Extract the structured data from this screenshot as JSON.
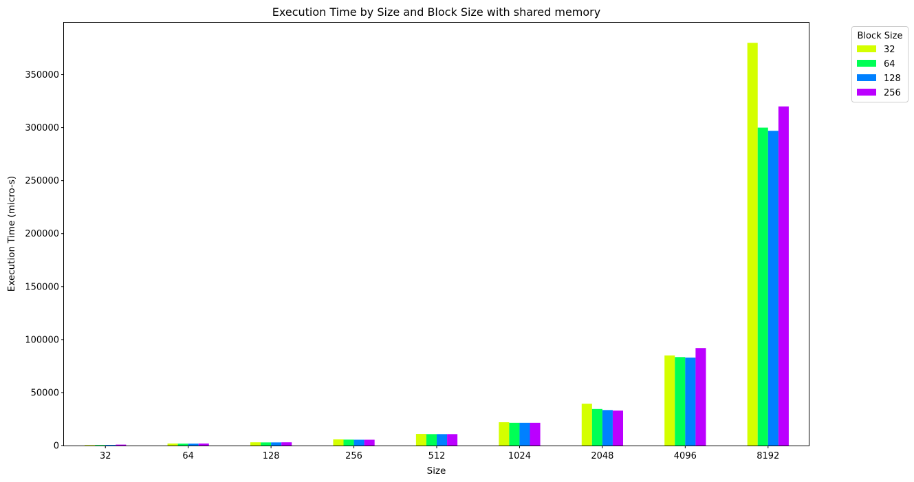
{
  "chart_data": {
    "type": "bar",
    "title": "Execution Time by Size and Block Size with shared memory",
    "xlabel": "Size",
    "ylabel": "Execution Time (micro-s)",
    "categories": [
      "32",
      "64",
      "128",
      "256",
      "512",
      "1024",
      "2048",
      "4096",
      "8192"
    ],
    "ylim": [
      0,
      399000
    ],
    "yticks": [
      0,
      50000,
      100000,
      150000,
      200000,
      250000,
      300000,
      350000
    ],
    "legend": {
      "title": "Block Size",
      "position": "outside-top-right"
    },
    "grid": false,
    "series": [
      {
        "name": "32",
        "color": "#d4ff00",
        "values": [
          400,
          1900,
          3100,
          5800,
          11000,
          22000,
          39500,
          85000,
          380000
        ]
      },
      {
        "name": "64",
        "color": "#00ff55",
        "values": [
          500,
          1800,
          3000,
          5600,
          10800,
          21500,
          34500,
          83500,
          300000
        ]
      },
      {
        "name": "128",
        "color": "#0080ff",
        "values": [
          600,
          1800,
          3000,
          5500,
          10800,
          21500,
          33500,
          83000,
          297000
        ]
      },
      {
        "name": "256",
        "color": "#bb00ff",
        "values": [
          900,
          1900,
          3100,
          5500,
          10800,
          21500,
          33000,
          92000,
          320000
        ]
      }
    ]
  }
}
